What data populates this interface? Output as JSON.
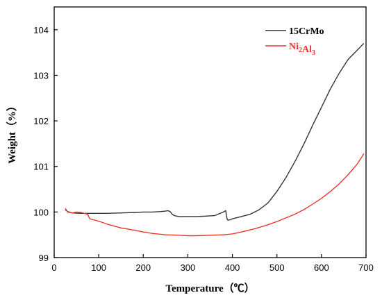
{
  "chart_data": {
    "type": "line",
    "title": "",
    "xlabel": "Temperature（℃）",
    "ylabel": "Weight（%）",
    "xlim": [
      0,
      700
    ],
    "ylim": [
      99,
      104.5
    ],
    "xticks": [
      0,
      100,
      200,
      300,
      400,
      500,
      600,
      700
    ],
    "yticks": [
      99,
      100,
      101,
      102,
      103,
      104
    ],
    "grid": false,
    "legend_position": "top-right",
    "series": [
      {
        "name": "15CrMo",
        "legend_parts": [
          {
            "text": "15CrMo",
            "sub": false
          }
        ],
        "color": "#333333",
        "x": [
          25,
          30,
          40,
          60,
          80,
          100,
          120,
          150,
          180,
          200,
          220,
          240,
          250,
          255,
          260,
          265,
          270,
          280,
          300,
          320,
          340,
          360,
          370,
          380,
          385,
          388,
          390,
          395,
          400,
          420,
          440,
          460,
          480,
          500,
          520,
          540,
          560,
          580,
          600,
          620,
          640,
          660,
          680,
          690,
          695
        ],
        "y": [
          100.05,
          100.01,
          99.98,
          99.97,
          99.97,
          99.97,
          99.97,
          99.98,
          99.99,
          100.0,
          100.0,
          100.01,
          100.02,
          100.03,
          100.01,
          99.95,
          99.92,
          99.9,
          99.9,
          99.9,
          99.91,
          99.92,
          99.96,
          100.0,
          100.03,
          99.85,
          99.82,
          99.83,
          99.85,
          99.9,
          99.95,
          100.05,
          100.2,
          100.45,
          100.75,
          101.1,
          101.48,
          101.9,
          102.3,
          102.7,
          103.05,
          103.35,
          103.55,
          103.65,
          103.7
        ]
      },
      {
        "name": "Ni2Al3",
        "legend_parts": [
          {
            "text": "Ni",
            "sub": false
          },
          {
            "text": "2",
            "sub": true
          },
          {
            "text": "Al",
            "sub": false
          },
          {
            "text": "3",
            "sub": true
          }
        ],
        "color": "#e8372f",
        "x": [
          25,
          30,
          40,
          50,
          60,
          75,
          80,
          100,
          120,
          150,
          180,
          200,
          220,
          250,
          280,
          300,
          320,
          350,
          380,
          400,
          420,
          450,
          480,
          500,
          520,
          540,
          560,
          580,
          600,
          620,
          640,
          660,
          680,
          690,
          695
        ],
        "y": [
          100.08,
          100.0,
          99.98,
          100.0,
          99.99,
          99.95,
          99.85,
          99.8,
          99.73,
          99.65,
          99.6,
          99.56,
          99.53,
          99.5,
          99.49,
          99.48,
          99.48,
          99.49,
          99.5,
          99.52,
          99.56,
          99.63,
          99.72,
          99.79,
          99.87,
          99.95,
          100.05,
          100.17,
          100.3,
          100.45,
          100.62,
          100.82,
          101.05,
          101.2,
          101.28
        ]
      }
    ]
  }
}
